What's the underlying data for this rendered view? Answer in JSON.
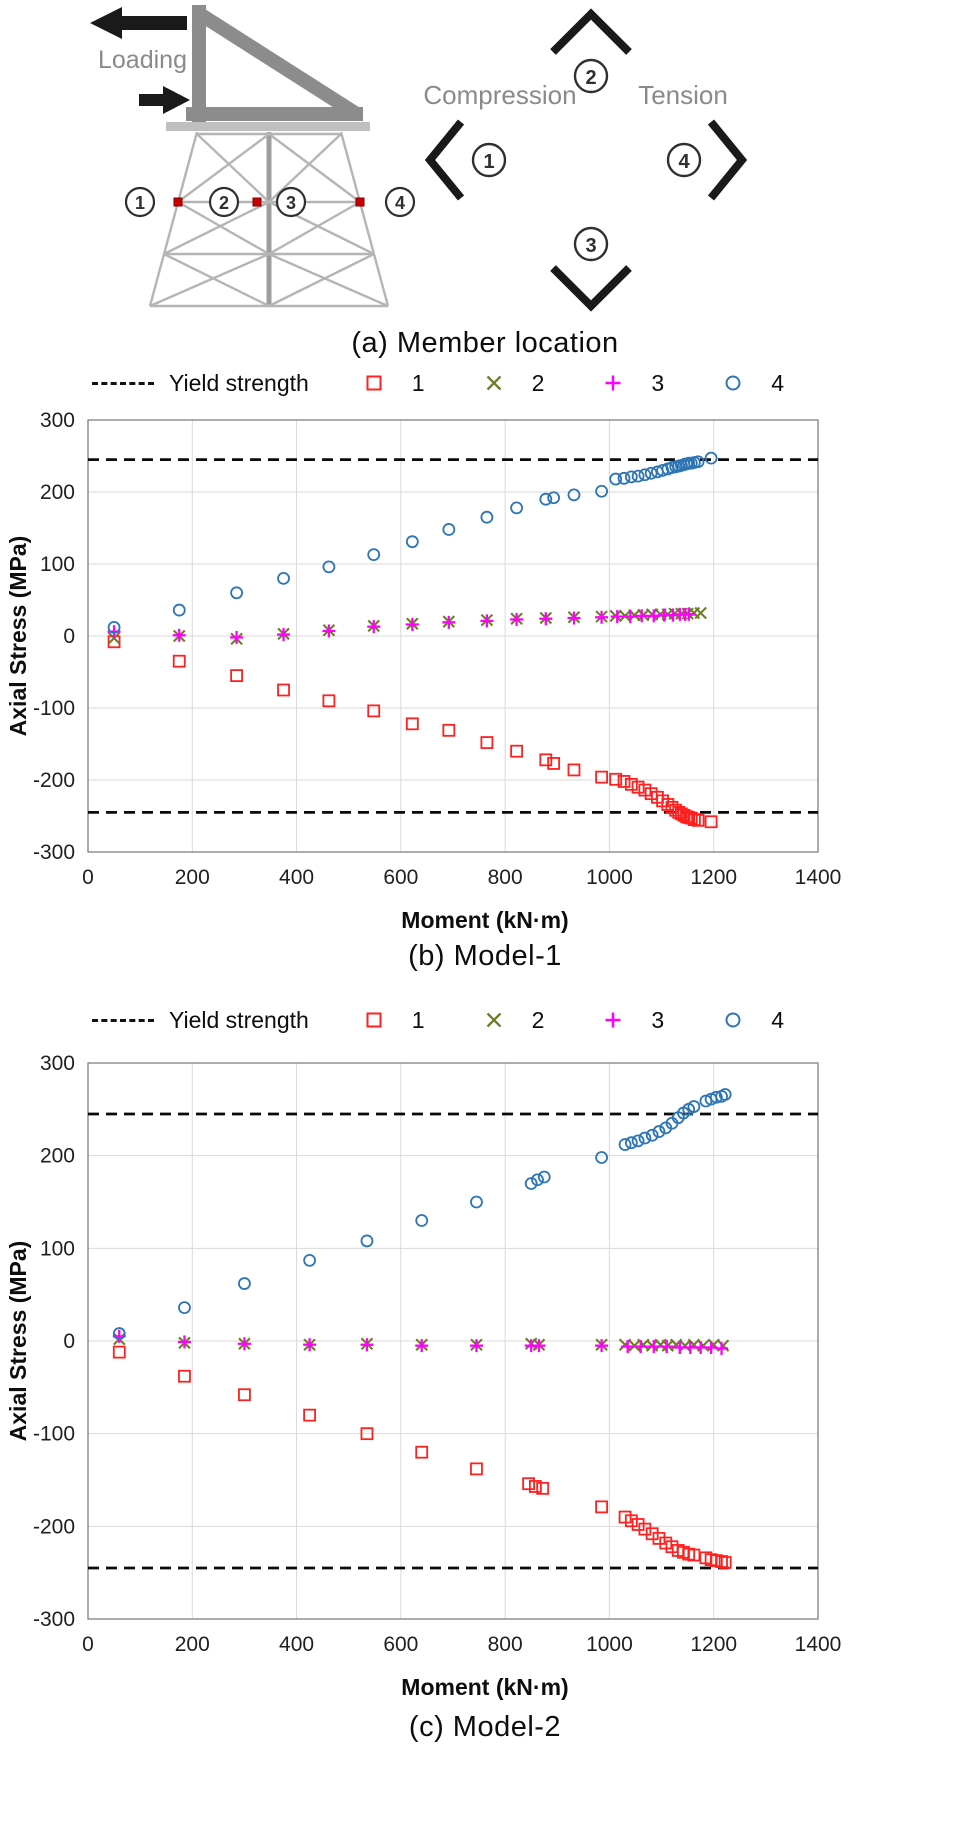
{
  "figure": {
    "caption_a": "(a) Member location",
    "caption_b": "(b) Model-1",
    "caption_c": "(c) Model-2"
  },
  "diagram": {
    "loading_label": "Loading",
    "compression_label": "Compression",
    "tension_label": "Tension",
    "member_numbers": [
      "1",
      "2",
      "3",
      "4"
    ]
  },
  "legend": {
    "yield_label": "Yield strength",
    "series": [
      {
        "label": "1",
        "marker": "square",
        "color": "#ff2020"
      },
      {
        "label": "2",
        "marker": "x",
        "color": "#6f7d28"
      },
      {
        "label": "3",
        "marker": "plus",
        "color": "#ff00ff"
      },
      {
        "label": "4",
        "marker": "circle",
        "color": "#2e75b6"
      }
    ]
  },
  "chart_data": [
    {
      "type": "scatter",
      "name": "Model-1",
      "title": "(b) Model-1",
      "xlabel": "Moment (kN·m)",
      "ylabel": "Axial Stress (MPa)",
      "xlim": [
        0,
        1400
      ],
      "ylim": [
        -300,
        300
      ],
      "xticks": [
        0,
        200,
        400,
        600,
        800,
        1000,
        1200,
        1400
      ],
      "yticks": [
        -300,
        -200,
        -100,
        0,
        100,
        200,
        300
      ],
      "grid": true,
      "legend_position": "top",
      "yield_strength": [
        245,
        -245
      ],
      "series": [
        {
          "name": "1",
          "marker": "square",
          "color": "#ff2020",
          "points": [
            [
              50,
              -8
            ],
            [
              175,
              -35
            ],
            [
              285,
              -55
            ],
            [
              375,
              -75
            ],
            [
              462,
              -90
            ],
            [
              548,
              -104
            ],
            [
              622,
              -122
            ],
            [
              692,
              -131
            ],
            [
              765,
              -148
            ],
            [
              822,
              -160
            ],
            [
              878,
              -172
            ],
            [
              893,
              -177
            ],
            [
              932,
              -186
            ],
            [
              985,
              -196
            ],
            [
              1012,
              -199
            ],
            [
              1028,
              -202
            ],
            [
              1042,
              -206
            ],
            [
              1055,
              -210
            ],
            [
              1068,
              -214
            ],
            [
              1080,
              -219
            ],
            [
              1092,
              -224
            ],
            [
              1102,
              -229
            ],
            [
              1112,
              -234
            ],
            [
              1120,
              -238
            ],
            [
              1127,
              -242
            ],
            [
              1133,
              -245
            ],
            [
              1138,
              -247
            ],
            [
              1143,
              -249
            ],
            [
              1148,
              -251
            ],
            [
              1152,
              -252
            ],
            [
              1157,
              -253
            ],
            [
              1163,
              -255
            ],
            [
              1170,
              -256
            ],
            [
              1195,
              -258
            ]
          ]
        },
        {
          "name": "2",
          "marker": "x",
          "color": "#6f7d28",
          "points": [
            [
              50,
              -3
            ],
            [
              175,
              0
            ],
            [
              285,
              -4
            ],
            [
              375,
              3
            ],
            [
              462,
              8
            ],
            [
              548,
              14
            ],
            [
              622,
              17
            ],
            [
              692,
              20
            ],
            [
              765,
              22
            ],
            [
              822,
              24
            ],
            [
              878,
              25
            ],
            [
              932,
              26
            ],
            [
              985,
              27
            ],
            [
              1012,
              28
            ],
            [
              1030,
              28
            ],
            [
              1048,
              29
            ],
            [
              1065,
              29
            ],
            [
              1082,
              30
            ],
            [
              1098,
              30
            ],
            [
              1112,
              30
            ],
            [
              1125,
              31
            ],
            [
              1138,
              31
            ],
            [
              1150,
              31
            ],
            [
              1162,
              32
            ],
            [
              1175,
              32
            ]
          ]
        },
        {
          "name": "3",
          "marker": "plus",
          "color": "#ff00ff",
          "points": [
            [
              50,
              6
            ],
            [
              175,
              1
            ],
            [
              285,
              -2
            ],
            [
              375,
              2
            ],
            [
              462,
              7
            ],
            [
              548,
              13
            ],
            [
              622,
              16
            ],
            [
              692,
              19
            ],
            [
              765,
              21
            ],
            [
              822,
              23
            ],
            [
              878,
              24
            ],
            [
              932,
              25
            ],
            [
              985,
              26
            ],
            [
              1015,
              27
            ],
            [
              1040,
              27
            ],
            [
              1062,
              28
            ],
            [
              1085,
              28
            ],
            [
              1105,
              29
            ],
            [
              1122,
              29
            ],
            [
              1135,
              30
            ],
            [
              1145,
              30
            ],
            [
              1152,
              30
            ]
          ]
        },
        {
          "name": "4",
          "marker": "circle",
          "color": "#2e75b6",
          "points": [
            [
              50,
              12
            ],
            [
              175,
              36
            ],
            [
              285,
              60
            ],
            [
              375,
              80
            ],
            [
              462,
              96
            ],
            [
              548,
              113
            ],
            [
              622,
              131
            ],
            [
              692,
              148
            ],
            [
              765,
              165
            ],
            [
              822,
              178
            ],
            [
              878,
              190
            ],
            [
              893,
              192
            ],
            [
              932,
              196
            ],
            [
              985,
              201
            ],
            [
              1012,
              218
            ],
            [
              1028,
              219
            ],
            [
              1042,
              221
            ],
            [
              1055,
              222
            ],
            [
              1068,
              224
            ],
            [
              1080,
              226
            ],
            [
              1092,
              228
            ],
            [
              1102,
              230
            ],
            [
              1112,
              232
            ],
            [
              1120,
              234
            ],
            [
              1127,
              235
            ],
            [
              1133,
              236
            ],
            [
              1138,
              237
            ],
            [
              1143,
              238
            ],
            [
              1148,
              239
            ],
            [
              1152,
              240
            ],
            [
              1157,
              240
            ],
            [
              1163,
              241
            ],
            [
              1170,
              242
            ],
            [
              1195,
              247
            ]
          ]
        }
      ]
    },
    {
      "type": "scatter",
      "name": "Model-2",
      "title": "(c) Model-2",
      "xlabel": "Moment (kN·m)",
      "ylabel": "Axial Stress (MPa)",
      "xlim": [
        0,
        1400
      ],
      "ylim": [
        -300,
        300
      ],
      "xticks": [
        0,
        200,
        400,
        600,
        800,
        1000,
        1200,
        1400
      ],
      "yticks": [
        -300,
        -200,
        -100,
        0,
        100,
        200,
        300
      ],
      "grid": true,
      "legend_position": "top",
      "yield_strength": [
        245,
        -245
      ],
      "series": [
        {
          "name": "1",
          "marker": "square",
          "color": "#ff2020",
          "points": [
            [
              60,
              -12
            ],
            [
              185,
              -38
            ],
            [
              300,
              -58
            ],
            [
              425,
              -80
            ],
            [
              535,
              -100
            ],
            [
              640,
              -120
            ],
            [
              745,
              -138
            ],
            [
              845,
              -154
            ],
            [
              858,
              -157
            ],
            [
              872,
              -159
            ],
            [
              985,
              -179
            ],
            [
              1030,
              -190
            ],
            [
              1042,
              -194
            ],
            [
              1055,
              -198
            ],
            [
              1068,
              -203
            ],
            [
              1082,
              -208
            ],
            [
              1095,
              -213
            ],
            [
              1108,
              -218
            ],
            [
              1120,
              -222
            ],
            [
              1132,
              -226
            ],
            [
              1142,
              -228
            ],
            [
              1152,
              -230
            ],
            [
              1162,
              -231
            ],
            [
              1185,
              -234
            ],
            [
              1195,
              -236
            ],
            [
              1205,
              -237
            ],
            [
              1215,
              -238
            ],
            [
              1222,
              -239
            ]
          ]
        },
        {
          "name": "2",
          "marker": "x",
          "color": "#6f7d28",
          "points": [
            [
              60,
              2
            ],
            [
              185,
              -2
            ],
            [
              300,
              -3
            ],
            [
              425,
              -4
            ],
            [
              535,
              -3
            ],
            [
              640,
              -4
            ],
            [
              745,
              -4
            ],
            [
              850,
              -3
            ],
            [
              865,
              -4
            ],
            [
              985,
              -4
            ],
            [
              1030,
              -4
            ],
            [
              1048,
              -5
            ],
            [
              1065,
              -4
            ],
            [
              1082,
              -5
            ],
            [
              1098,
              -4
            ],
            [
              1112,
              -5
            ],
            [
              1128,
              -4
            ],
            [
              1145,
              -5
            ],
            [
              1162,
              -4
            ],
            [
              1180,
              -5
            ],
            [
              1200,
              -4
            ],
            [
              1218,
              -5
            ]
          ]
        },
        {
          "name": "3",
          "marker": "plus",
          "color": "#ff00ff",
          "points": [
            [
              60,
              5
            ],
            [
              185,
              -1
            ],
            [
              300,
              -3
            ],
            [
              425,
              -4
            ],
            [
              535,
              -4
            ],
            [
              640,
              -5
            ],
            [
              745,
              -5
            ],
            [
              850,
              -5
            ],
            [
              865,
              -5
            ],
            [
              985,
              -5
            ],
            [
              1035,
              -6
            ],
            [
              1060,
              -6
            ],
            [
              1085,
              -6
            ],
            [
              1110,
              -6
            ],
            [
              1135,
              -7
            ],
            [
              1155,
              -7
            ],
            [
              1175,
              -7
            ],
            [
              1195,
              -7
            ],
            [
              1215,
              -8
            ]
          ]
        },
        {
          "name": "4",
          "marker": "circle",
          "color": "#2e75b6",
          "points": [
            [
              60,
              8
            ],
            [
              185,
              36
            ],
            [
              300,
              62
            ],
            [
              425,
              87
            ],
            [
              535,
              108
            ],
            [
              640,
              130
            ],
            [
              745,
              150
            ],
            [
              850,
              170
            ],
            [
              862,
              174
            ],
            [
              875,
              177
            ],
            [
              985,
              198
            ],
            [
              1030,
              212
            ],
            [
              1042,
              214
            ],
            [
              1055,
              216
            ],
            [
              1068,
              219
            ],
            [
              1082,
              222
            ],
            [
              1095,
              226
            ],
            [
              1108,
              230
            ],
            [
              1120,
              235
            ],
            [
              1132,
              241
            ],
            [
              1142,
              246
            ],
            [
              1152,
              250
            ],
            [
              1162,
              253
            ],
            [
              1185,
              259
            ],
            [
              1195,
              261
            ],
            [
              1205,
              263
            ],
            [
              1215,
              264
            ],
            [
              1222,
              266
            ]
          ]
        }
      ]
    }
  ]
}
